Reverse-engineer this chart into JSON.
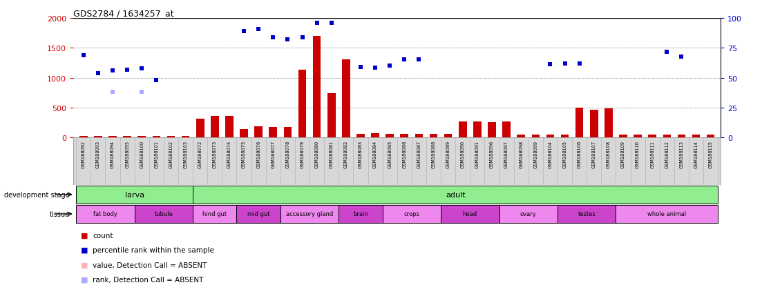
{
  "title": "GDS2784 / 1634257_at",
  "samples": [
    "GSM188092",
    "GSM188093",
    "GSM188094",
    "GSM188095",
    "GSM188100",
    "GSM188101",
    "GSM188102",
    "GSM188103",
    "GSM188072",
    "GSM188073",
    "GSM188074",
    "GSM188075",
    "GSM188076",
    "GSM188077",
    "GSM188078",
    "GSM188079",
    "GSM188080",
    "GSM188081",
    "GSM188082",
    "GSM188083",
    "GSM188084",
    "GSM188085",
    "GSM188086",
    "GSM188087",
    "GSM188088",
    "GSM188089",
    "GSM188090",
    "GSM188091",
    "GSM188096",
    "GSM188097",
    "GSM188098",
    "GSM188099",
    "GSM188104",
    "GSM188105",
    "GSM188106",
    "GSM188107",
    "GSM188108",
    "GSM188109",
    "GSM188110",
    "GSM188111",
    "GSM188112",
    "GSM188113",
    "GSM188114",
    "GSM188115"
  ],
  "counts": [
    28,
    28,
    28,
    28,
    28,
    28,
    28,
    28,
    310,
    360,
    360,
    145,
    185,
    180,
    175,
    1140,
    1700,
    740,
    1310,
    65,
    75,
    65,
    58,
    58,
    60,
    58,
    275,
    265,
    255,
    265,
    48,
    48,
    48,
    48,
    500,
    460,
    490,
    48,
    48,
    48,
    48,
    48,
    48,
    48
  ],
  "ranks": [
    1380,
    1080,
    1120,
    1130,
    1160,
    960,
    null,
    null,
    null,
    null,
    null,
    1780,
    1820,
    1680,
    1640,
    1680,
    1920,
    1920,
    null,
    1180,
    1170,
    1200,
    1310,
    1310,
    null,
    null,
    null,
    null,
    null,
    null,
    null,
    null,
    1230,
    1240,
    1240,
    null,
    null,
    null,
    null,
    null,
    1430,
    1350,
    null,
    null
  ],
  "absent_ranks": [
    null,
    null,
    760,
    null,
    760,
    null,
    null,
    null,
    null,
    null,
    null,
    null,
    null,
    null,
    null,
    null,
    null,
    null,
    null,
    null,
    null,
    null,
    null,
    null,
    null,
    null,
    null,
    null,
    null,
    null,
    null,
    null,
    null,
    null,
    null,
    null,
    null,
    null,
    null,
    null,
    null,
    null,
    null,
    null
  ],
  "dev_stage_groups": [
    {
      "label": "larva",
      "start": 0,
      "end": 8
    },
    {
      "label": "adult",
      "start": 8,
      "end": 44
    }
  ],
  "tissue_groups": [
    {
      "label": "fat body",
      "start": 0,
      "end": 4,
      "shade": 1
    },
    {
      "label": "tubule",
      "start": 4,
      "end": 8,
      "shade": 2
    },
    {
      "label": "hind gut",
      "start": 8,
      "end": 11,
      "shade": 1
    },
    {
      "label": "mid gut",
      "start": 11,
      "end": 14,
      "shade": 2
    },
    {
      "label": "accessory gland",
      "start": 14,
      "end": 18,
      "shade": 1
    },
    {
      "label": "brain",
      "start": 18,
      "end": 21,
      "shade": 2
    },
    {
      "label": "crops",
      "start": 21,
      "end": 25,
      "shade": 1
    },
    {
      "label": "head",
      "start": 25,
      "end": 29,
      "shade": 2
    },
    {
      "label": "ovary",
      "start": 29,
      "end": 33,
      "shade": 1
    },
    {
      "label": "testes",
      "start": 33,
      "end": 37,
      "shade": 2
    },
    {
      "label": "whole animal",
      "start": 37,
      "end": 44,
      "shade": 1
    }
  ],
  "dev_color": "#90ee90",
  "tissue_color_light": "#ee88ee",
  "tissue_color_dark": "#cc44cc",
  "ylim_left": [
    0,
    2000
  ],
  "ylim_right": [
    0,
    100
  ],
  "yticks_left": [
    0,
    500,
    1000,
    1500,
    2000
  ],
  "yticks_right": [
    0,
    25,
    50,
    75,
    100
  ],
  "bar_color": "#cc0000",
  "rank_color": "#0000cc",
  "absent_count_color": "#ffb3b3",
  "absent_rank_color": "#aaaaff",
  "xticklabel_bg": "#d8d8d8",
  "plot_bg": "#ffffff",
  "legend_items": [
    {
      "color": "#cc0000",
      "label": "count"
    },
    {
      "color": "#0000cc",
      "label": "percentile rank within the sample"
    },
    {
      "color": "#ffb3b3",
      "label": "value, Detection Call = ABSENT"
    },
    {
      "color": "#aaaaff",
      "label": "rank, Detection Call = ABSENT"
    }
  ]
}
